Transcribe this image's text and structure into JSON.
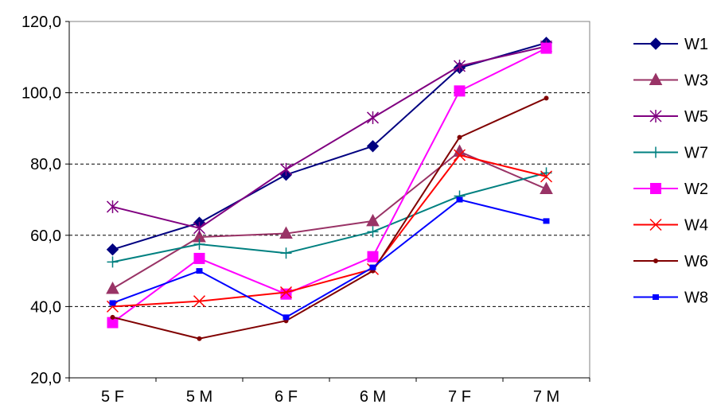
{
  "chart_data": {
    "type": "line",
    "title": "",
    "xlabel": "",
    "ylabel": "",
    "categories": [
      "5 F",
      "5 M",
      "6 F",
      "6 M",
      "7 F",
      "7 M"
    ],
    "ylim": [
      20,
      120
    ],
    "yticks": [
      20,
      40,
      60,
      80,
      100,
      120
    ],
    "ytick_labels": [
      "20,0",
      "40,0",
      "60,0",
      "80,0",
      "100,0",
      "120,0"
    ],
    "grid": "horizontal dashed",
    "legend_position": "right",
    "series": [
      {
        "name": "W1",
        "color": "#000080",
        "marker": "diamond",
        "values": [
          56,
          63.5,
          77,
          85,
          107,
          114
        ]
      },
      {
        "name": "W3",
        "color": "#993366",
        "marker": "triangle",
        "values": [
          45,
          59.5,
          60.5,
          64,
          83.5,
          73
        ]
      },
      {
        "name": "W5",
        "color": "#800080",
        "marker": "asterisk",
        "values": [
          68,
          62,
          78.5,
          93,
          107.5,
          113
        ]
      },
      {
        "name": "W7",
        "color": "#008080",
        "marker": "plus",
        "values": [
          52.5,
          57.5,
          55,
          61,
          71,
          77.5
        ]
      },
      {
        "name": "W2",
        "color": "#ff00ff",
        "marker": "square",
        "values": [
          35.5,
          53.5,
          43.5,
          54,
          100.5,
          112.5
        ]
      },
      {
        "name": "W4",
        "color": "#ff0000",
        "marker": "x",
        "values": [
          40,
          41.5,
          44,
          50.5,
          82.5,
          76.5
        ]
      },
      {
        "name": "W6",
        "color": "#800000",
        "marker": "dot",
        "values": [
          37,
          31,
          36,
          50,
          87.5,
          98.5
        ]
      },
      {
        "name": "W8",
        "color": "#0000ff",
        "marker": "small-square",
        "values": [
          41,
          50,
          37,
          51,
          70,
          64
        ]
      }
    ]
  }
}
